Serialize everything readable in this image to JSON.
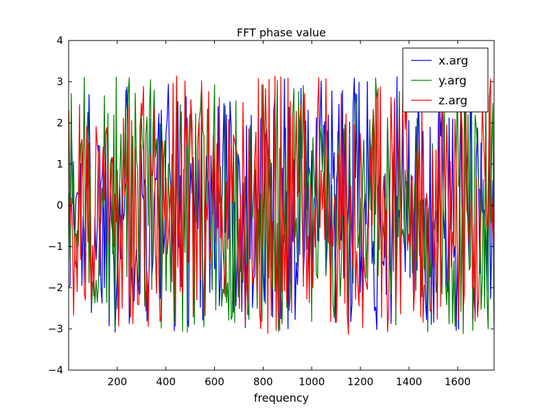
{
  "chart_data": {
    "type": "line",
    "title": "FFT phase value",
    "xlabel": "frequency",
    "ylabel": "",
    "xlim": [
      0,
      1750
    ],
    "ylim": [
      -4,
      4
    ],
    "x_ticks": [
      200,
      400,
      600,
      800,
      1000,
      1200,
      1400,
      1600
    ],
    "y_ticks": [
      -4,
      -3,
      -2,
      -1,
      0,
      1,
      2,
      3,
      4
    ],
    "x_tick_labels": [
      "200",
      "400",
      "600",
      "800",
      "1000",
      "1200",
      "1400",
      "1600"
    ],
    "y_tick_labels": [
      "−4",
      "−3",
      "−2",
      "−1",
      "0",
      "1",
      "2",
      "3",
      "4"
    ],
    "grid": false,
    "legend_position": "top-right",
    "x_sampling": {
      "start": 1,
      "end": 1750,
      "count": 360
    },
    "series": [
      {
        "name": "x.arg",
        "color": "#0000ff",
        "seed": 1337,
        "envelope": [
          -3.14,
          3.14
        ]
      },
      {
        "name": "y.arg",
        "color": "#008000",
        "seed": 4242,
        "envelope": [
          -3.14,
          3.14
        ]
      },
      {
        "name": "z.arg",
        "color": "#ff0000",
        "seed": 9001,
        "envelope": [
          -3.14,
          3.14
        ]
      }
    ]
  }
}
